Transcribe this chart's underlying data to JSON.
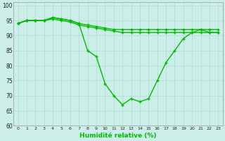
{
  "xlabel": "Humidité relative (%)",
  "bg_color": "#cceee8",
  "grid_color": "#aaddcc",
  "line_color": "#00bb00",
  "xlim": [
    -0.5,
    23.5
  ],
  "ylim": [
    60,
    101
  ],
  "yticks": [
    60,
    65,
    70,
    75,
    80,
    85,
    90,
    95,
    100
  ],
  "xticks": [
    0,
    1,
    2,
    3,
    4,
    5,
    6,
    7,
    8,
    9,
    10,
    11,
    12,
    13,
    14,
    15,
    16,
    17,
    18,
    19,
    20,
    21,
    22,
    23
  ],
  "line1": [
    94,
    95,
    95,
    95,
    96,
    95.5,
    95,
    94,
    93.5,
    93,
    92.5,
    92,
    92,
    92,
    92,
    92,
    92,
    92,
    92,
    92,
    92,
    92,
    91,
    91
  ],
  "line2": [
    94,
    95,
    95,
    95,
    96,
    95.5,
    95,
    94,
    85,
    83,
    74,
    70,
    67,
    69,
    68,
    69,
    75,
    81,
    85,
    89,
    91,
    92,
    92,
    92
  ],
  "line3": [
    94,
    95,
    95,
    95,
    95.5,
    95,
    94.5,
    93.5,
    93,
    92.5,
    92,
    91.5,
    91,
    91,
    91,
    91,
    91,
    91,
    91,
    91,
    91,
    91,
    91,
    91
  ]
}
